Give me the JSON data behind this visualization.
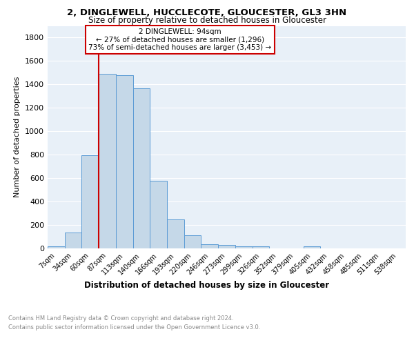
{
  "title1": "2, DINGLEWELL, HUCCLECOTE, GLOUCESTER, GL3 3HN",
  "title2": "Size of property relative to detached houses in Gloucester",
  "xlabel": "Distribution of detached houses by size in Gloucester",
  "ylabel": "Number of detached properties",
  "bar_color": "#c5d8e8",
  "bar_edge_color": "#5b9bd5",
  "background_color": "#e8f0f8",
  "grid_color": "white",
  "x_labels": [
    "7sqm",
    "34sqm",
    "60sqm",
    "87sqm",
    "113sqm",
    "140sqm",
    "166sqm",
    "193sqm",
    "220sqm",
    "246sqm",
    "273sqm",
    "299sqm",
    "326sqm",
    "352sqm",
    "379sqm",
    "405sqm",
    "432sqm",
    "458sqm",
    "485sqm",
    "511sqm",
    "538sqm"
  ],
  "bar_heights": [
    20,
    135,
    795,
    1490,
    1480,
    1365,
    575,
    245,
    112,
    35,
    28,
    15,
    18,
    0,
    0,
    18,
    0,
    0,
    0,
    0,
    0
  ],
  "ylim": [
    0,
    1900
  ],
  "yticks": [
    0,
    200,
    400,
    600,
    800,
    1000,
    1200,
    1400,
    1600,
    1800
  ],
  "vline_index": 2.5,
  "annotation_title": "2 DINGLEWELL: 94sqm",
  "annotation_line1": "← 27% of detached houses are smaller (1,296)",
  "annotation_line2": "73% of semi-detached houses are larger (3,453) →",
  "vline_color": "#cc0000",
  "annotation_box_color": "white",
  "annotation_box_edge": "#cc0000",
  "footer1": "Contains HM Land Registry data © Crown copyright and database right 2024.",
  "footer2": "Contains public sector information licensed under the Open Government Licence v3.0."
}
